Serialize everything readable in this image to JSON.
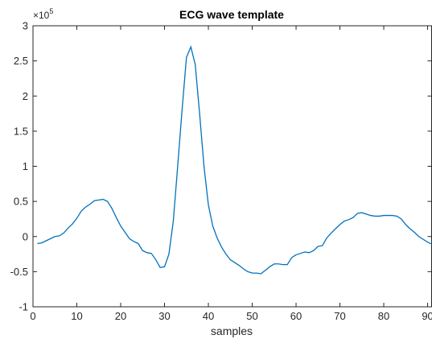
{
  "chart_data": {
    "type": "line",
    "title": "ECG wave template",
    "xlabel": "samples",
    "ylabel": "",
    "xlim": [
      0,
      91
    ],
    "ylim": [
      -1,
      3
    ],
    "xticks": [
      0,
      10,
      20,
      30,
      40,
      50,
      60,
      70,
      80,
      90
    ],
    "xtick_labels": [
      "0",
      "10",
      "20",
      "30",
      "40",
      "50",
      "60",
      "70",
      "80",
      "90"
    ],
    "yticks": [
      -1,
      -0.5,
      0,
      0.5,
      1,
      1.5,
      2,
      2.5,
      3
    ],
    "ytick_labels": [
      "-1",
      "-0.5",
      "0",
      "0.5",
      "1",
      "1.5",
      "2",
      "2.5",
      "3"
    ],
    "y_exponent": {
      "base": "×10",
      "power": "5"
    },
    "grid": false,
    "series_color": "#0072BD",
    "series": [
      {
        "x": [
          1,
          2,
          3,
          4,
          5,
          6,
          7,
          8,
          9,
          10,
          11,
          12,
          13,
          14,
          15,
          16,
          17,
          18,
          19,
          20,
          21,
          22,
          23,
          24,
          25,
          26,
          27,
          28,
          29,
          30,
          31,
          32,
          33,
          34,
          35,
          36,
          37,
          38,
          39,
          40,
          41,
          42,
          43,
          44,
          45,
          46,
          47,
          48,
          49,
          50,
          51,
          52,
          53,
          54,
          55,
          56,
          57,
          58,
          59,
          60,
          61,
          62,
          63,
          64,
          65,
          66,
          67,
          68,
          69,
          70,
          71,
          72,
          73,
          74,
          75,
          76,
          77,
          78,
          79,
          80,
          81,
          82,
          83,
          84,
          85,
          86,
          87,
          88,
          89,
          90,
          91
        ],
        "y": [
          -0.1,
          -0.09,
          -0.06,
          -0.03,
          0.0,
          0.01,
          0.05,
          0.12,
          0.18,
          0.26,
          0.36,
          0.42,
          0.46,
          0.51,
          0.52,
          0.53,
          0.5,
          0.4,
          0.27,
          0.15,
          0.06,
          -0.03,
          -0.07,
          -0.1,
          -0.2,
          -0.23,
          -0.24,
          -0.33,
          -0.44,
          -0.43,
          -0.25,
          0.22,
          1.0,
          1.8,
          2.55,
          2.7,
          2.45,
          1.75,
          1.0,
          0.45,
          0.15,
          -0.02,
          -0.15,
          -0.25,
          -0.33,
          -0.37,
          -0.41,
          -0.46,
          -0.5,
          -0.52,
          -0.52,
          -0.53,
          -0.48,
          -0.43,
          -0.39,
          -0.39,
          -0.4,
          -0.4,
          -0.3,
          -0.26,
          -0.24,
          -0.22,
          -0.23,
          -0.2,
          -0.14,
          -0.13,
          -0.02,
          0.05,
          0.11,
          0.17,
          0.22,
          0.24,
          0.27,
          0.33,
          0.34,
          0.32,
          0.3,
          0.29,
          0.29,
          0.3,
          0.3,
          0.3,
          0.29,
          0.25,
          0.17,
          0.11,
          0.06,
          0.0,
          -0.04,
          -0.08,
          -0.11
        ]
      }
    ]
  }
}
